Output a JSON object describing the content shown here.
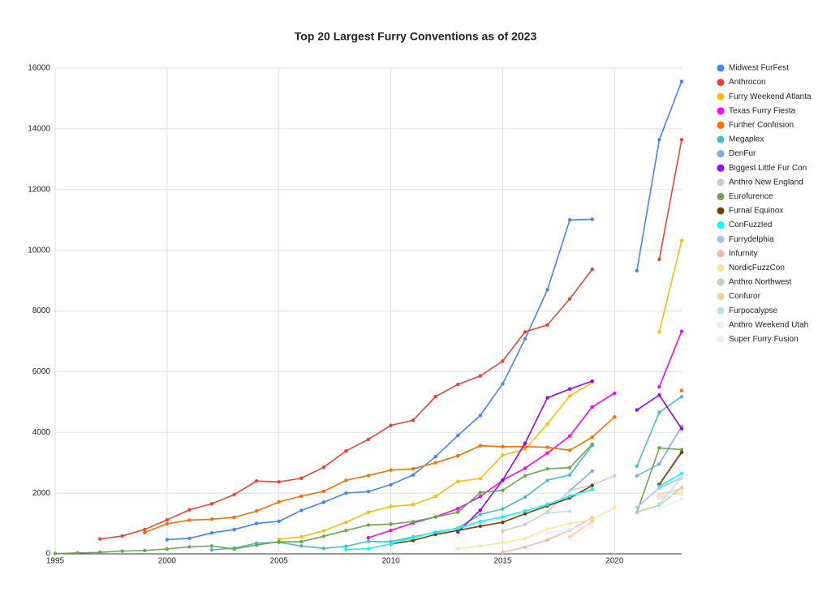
{
  "chart_data": {
    "type": "line",
    "title": "Top 20 Largest Furry Conventions as of 2023",
    "x": [
      1995,
      1996,
      1997,
      1998,
      1999,
      2000,
      2001,
      2002,
      2003,
      2004,
      2005,
      2006,
      2007,
      2008,
      2009,
      2010,
      2011,
      2012,
      2013,
      2014,
      2015,
      2016,
      2017,
      2018,
      2019,
      2020,
      2021,
      2022,
      2023
    ],
    "xlim": [
      1995,
      2023
    ],
    "xticks": [
      1995,
      2000,
      2005,
      2010,
      2015,
      2020
    ],
    "ylim": [
      0,
      16000
    ],
    "yticks": [
      0,
      2000,
      4000,
      6000,
      8000,
      10000,
      12000,
      14000,
      16000
    ],
    "grid": true,
    "legend": "right",
    "series": [
      {
        "name": "Midwest FurFest",
        "color": "#4285f4",
        "values": [
          null,
          null,
          null,
          null,
          null,
          470,
          510,
          690,
          800,
          1000,
          1070,
          1430,
          1700,
          2000,
          2050,
          2280,
          2600,
          3200,
          3900,
          4560,
          5600,
          7080,
          8700,
          11000,
          11020,
          null,
          9330,
          13640,
          15560
        ]
      },
      {
        "name": "Anthrocon",
        "color": "#ea4335",
        "values": [
          null,
          null,
          490,
          590,
          800,
          1120,
          1450,
          1650,
          1950,
          2400,
          2370,
          2490,
          2850,
          3390,
          3770,
          4230,
          4400,
          5180,
          5580,
          5860,
          6350,
          7310,
          7540,
          8400,
          9370,
          null,
          null,
          9700,
          13640
        ]
      },
      {
        "name": "Furry Weekend Atlanta",
        "color": "#fbbc04",
        "values": [
          null,
          null,
          null,
          null,
          null,
          null,
          null,
          null,
          null,
          null,
          480,
          560,
          760,
          1040,
          1370,
          1560,
          1620,
          1890,
          2390,
          2480,
          3250,
          3450,
          4280,
          5200,
          5640,
          null,
          null,
          7310,
          10320
        ]
      },
      {
        "name": "Texas Furry Fiesta",
        "color": "#ff00ff",
        "values": [
          null,
          null,
          null,
          null,
          null,
          null,
          null,
          null,
          null,
          null,
          null,
          null,
          null,
          null,
          530,
          770,
          1020,
          1220,
          1490,
          1890,
          2420,
          2820,
          3320,
          3880,
          4840,
          5290,
          null,
          5500,
          7330
        ]
      },
      {
        "name": "Further Confusion",
        "color": "#ff6d01",
        "values": [
          null,
          null,
          null,
          null,
          700,
          990,
          1110,
          1140,
          1200,
          1410,
          1710,
          1900,
          2060,
          2420,
          2580,
          2760,
          2800,
          3000,
          3230,
          3560,
          3530,
          3530,
          3510,
          3410,
          3840,
          4510,
          null,
          null,
          5380
        ]
      },
      {
        "name": "Megaplex",
        "color": "#46bdc6",
        "values": [
          null,
          null,
          null,
          null,
          null,
          null,
          null,
          130,
          190,
          350,
          380,
          260,
          180,
          250,
          410,
          400,
          560,
          700,
          850,
          1300,
          1480,
          1870,
          2420,
          2600,
          3570,
          null,
          2890,
          4660,
          5180
        ]
      },
      {
        "name": "DenFur",
        "color": "#7baaf7",
        "values": [
          null,
          null,
          null,
          null,
          null,
          null,
          null,
          null,
          null,
          null,
          null,
          null,
          null,
          null,
          null,
          null,
          null,
          null,
          null,
          null,
          null,
          null,
          null,
          2080,
          2730,
          null,
          2570,
          2960,
          4200
        ]
      },
      {
        "name": "Biggest Little Fur Con",
        "color": "#9900ff",
        "values": [
          null,
          null,
          null,
          null,
          null,
          null,
          null,
          null,
          null,
          null,
          null,
          null,
          null,
          null,
          null,
          null,
          null,
          null,
          720,
          1440,
          2430,
          3640,
          5140,
          5430,
          5690,
          null,
          4740,
          5230,
          4120
        ]
      },
      {
        "name": "Anthro New England",
        "color": "#cccccc",
        "values": [
          null,
          null,
          null,
          null,
          null,
          null,
          null,
          null,
          null,
          null,
          null,
          null,
          null,
          null,
          null,
          null,
          null,
          null,
          null,
          null,
          750,
          970,
          1380,
          2080,
          2270,
          2570,
          null,
          2300,
          3420
        ]
      },
      {
        "name": "Eurofurence",
        "color": "#6aa84f",
        "values": [
          10,
          30,
          50,
          90,
          110,
          160,
          230,
          260,
          160,
          290,
          400,
          400,
          580,
          770,
          950,
          980,
          1060,
          1210,
          1370,
          2020,
          2090,
          2570,
          2800,
          2840,
          3610,
          null,
          1370,
          3490,
          3430
        ]
      },
      {
        "name": "Furnal Equinox",
        "color": "#783f04",
        "values": [
          null,
          null,
          null,
          null,
          null,
          null,
          null,
          null,
          null,
          null,
          null,
          null,
          null,
          null,
          null,
          320,
          440,
          640,
          770,
          910,
          1040,
          1320,
          1580,
          1840,
          2250,
          null,
          null,
          2280,
          3340
        ]
      },
      {
        "name": "ConFuzzled",
        "color": "#00ffff",
        "values": [
          null,
          null,
          null,
          null,
          null,
          null,
          null,
          null,
          null,
          null,
          null,
          null,
          null,
          140,
          170,
          330,
          530,
          720,
          840,
          1070,
          1220,
          1410,
          1630,
          1900,
          2120,
          null,
          null,
          2220,
          2650
        ]
      },
      {
        "name": "Furrydelphia",
        "color": "#a4c2f4",
        "values": [
          null,
          null,
          null,
          null,
          null,
          null,
          null,
          null,
          null,
          null,
          null,
          null,
          null,
          null,
          null,
          null,
          null,
          null,
          null,
          null,
          null,
          null,
          null,
          null,
          null,
          null,
          1530,
          2170,
          2500
        ]
      },
      {
        "name": "Infurnity",
        "color": "#f4b6aa",
        "values": [
          null,
          null,
          null,
          null,
          null,
          null,
          null,
          null,
          null,
          null,
          null,
          null,
          null,
          null,
          null,
          null,
          null,
          null,
          null,
          null,
          50,
          220,
          460,
          780,
          1190,
          null,
          null,
          1850,
          2000
        ]
      },
      {
        "name": "NordicFuzzCon",
        "color": "#ffe599",
        "values": [
          null,
          null,
          null,
          null,
          null,
          null,
          null,
          null,
          null,
          null,
          null,
          null,
          null,
          null,
          null,
          null,
          null,
          null,
          170,
          260,
          370,
          500,
          810,
          1000,
          1130,
          1510,
          null,
          1850,
          2000
        ]
      },
      {
        "name": "Anthro Northwest",
        "color": "#b6d7a8",
        "values": [
          null,
          null,
          null,
          null,
          null,
          null,
          null,
          null,
          null,
          null,
          null,
          null,
          null,
          null,
          null,
          null,
          null,
          null,
          null,
          null,
          null,
          null,
          null,
          null,
          null,
          null,
          1380,
          1600,
          2180
        ]
      },
      {
        "name": "Confuror",
        "color": "#f9cb9c",
        "values": [
          null,
          null,
          null,
          null,
          null,
          null,
          null,
          null,
          null,
          null,
          null,
          null,
          null,
          null,
          null,
          null,
          null,
          null,
          null,
          null,
          null,
          null,
          null,
          560,
          1060,
          null,
          null,
          1950,
          2160
        ]
      },
      {
        "name": "Furpocalypse",
        "color": "#b4e4e8",
        "values": [
          null,
          null,
          null,
          null,
          null,
          null,
          null,
          null,
          null,
          null,
          null,
          null,
          null,
          null,
          null,
          null,
          null,
          null,
          null,
          null,
          null,
          null,
          1350,
          1400,
          null,
          null,
          null,
          1650,
          2500
        ]
      },
      {
        "name": "Anthro Weekend Utah",
        "color": "#e8f0fe",
        "values": [
          null,
          null,
          null,
          null,
          null,
          null,
          null,
          null,
          null,
          null,
          null,
          null,
          null,
          null,
          null,
          null,
          null,
          null,
          null,
          null,
          null,
          null,
          700,
          830,
          960,
          null,
          null,
          1500,
          1800
        ]
      },
      {
        "name": "Super Furry Fusion",
        "color": "#fce8e6",
        "values": [
          null,
          null,
          null,
          null,
          null,
          null,
          null,
          null,
          null,
          null,
          null,
          null,
          null,
          null,
          null,
          null,
          null,
          null,
          null,
          null,
          null,
          null,
          null,
          500,
          900,
          null,
          null,
          1900,
          1950
        ]
      }
    ]
  }
}
